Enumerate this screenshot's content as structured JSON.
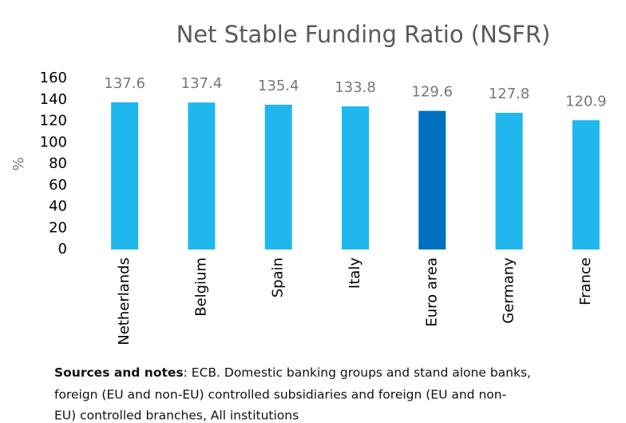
{
  "chart_data": {
    "type": "bar",
    "title": "Net Stable Funding Ratio (NSFR)",
    "y_label": "%",
    "categories": [
      "Netherlands",
      "Belgium",
      "Spain",
      "Italy",
      "Euro area",
      "Germany",
      "France"
    ],
    "values": [
      137.6,
      137.4,
      135.4,
      133.8,
      129.6,
      127.8,
      120.9
    ],
    "colors": [
      "#1fb7ee",
      "#1fb7ee",
      "#1fb7ee",
      "#1fb7ee",
      "#0070c0",
      "#1fb7ee",
      "#1fb7ee"
    ],
    "ylim": [
      0,
      160
    ],
    "yticks": [
      0,
      20,
      40,
      60,
      80,
      100,
      120,
      140,
      160
    ],
    "grid": false,
    "note": {
      "label": "Sources and notes",
      "lines": [
        ": ECB. Domestic banking groups and stand alone banks,",
        "foreign (EU and non-EU) controlled subsidiaries and foreign (EU and non-",
        "EU) controlled branches, All institutions"
      ]
    }
  }
}
